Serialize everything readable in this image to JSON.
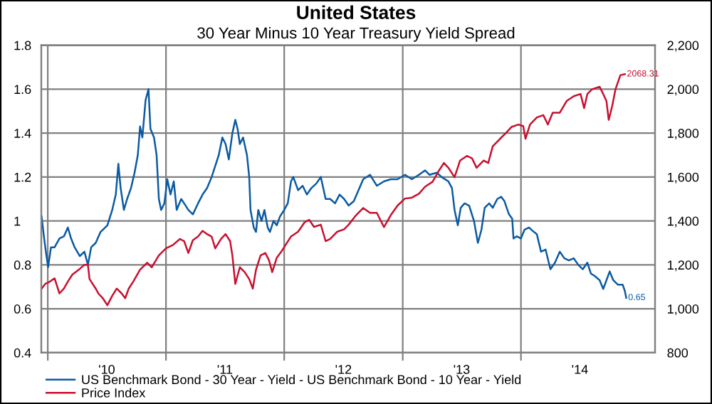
{
  "chart_data": {
    "type": "line",
    "title": "United States",
    "subtitle": "30 Year Minus 10 Year Treasury Yield Spread",
    "series": [
      {
        "name": "US Benchmark Bond - 30 Year - Yield - US Benchmark Bond - 10 Year - Yield",
        "color": "#0b5aa2",
        "axis": "y",
        "x": [
          "2009-12-13",
          "2009-12-20",
          "2009-12-27",
          "2010-01-02",
          "2010-01-11",
          "2010-01-22",
          "2010-02-06",
          "2010-02-20",
          "2010-03-04",
          "2010-03-14",
          "2010-03-25",
          "2010-04-10",
          "2010-04-24",
          "2010-05-05",
          "2010-05-15",
          "2010-05-29",
          "2010-06-13",
          "2010-07-04",
          "2010-07-19",
          "2010-07-30",
          "2010-08-07",
          "2010-08-14",
          "2010-08-24",
          "2010-09-03",
          "2010-09-15",
          "2010-09-26",
          "2010-10-06",
          "2010-10-13",
          "2010-10-20",
          "2010-10-30",
          "2010-11-08",
          "2010-11-14",
          "2010-11-25",
          "2010-12-03",
          "2010-12-10",
          "2010-12-17",
          "2010-12-27",
          "2011-01-05",
          "2011-01-15",
          "2011-01-25",
          "2011-02-03",
          "2011-02-17",
          "2011-02-26",
          "2011-03-11",
          "2011-03-25",
          "2011-04-10",
          "2011-04-24",
          "2011-05-08",
          "2011-05-22",
          "2011-06-02",
          "2011-06-13",
          "2011-06-24",
          "2011-07-04",
          "2011-07-14",
          "2011-07-25",
          "2011-08-03",
          "2011-08-10",
          "2011-08-17",
          "2011-08-27",
          "2011-09-08",
          "2011-09-15",
          "2011-09-19",
          "2011-09-29",
          "2011-10-06",
          "2011-10-13",
          "2011-10-23",
          "2011-11-01",
          "2011-11-11",
          "2011-11-18",
          "2011-11-29",
          "2011-12-09",
          "2011-12-19",
          "2012-01-01",
          "2012-01-12",
          "2012-01-22",
          "2012-01-29",
          "2012-02-13",
          "2012-02-27",
          "2012-03-11",
          "2012-03-25",
          "2012-04-09",
          "2012-04-23",
          "2012-05-08",
          "2012-05-22",
          "2012-06-06",
          "2012-06-20",
          "2012-07-04",
          "2012-07-18",
          "2012-08-03",
          "2012-09-01",
          "2012-09-22",
          "2012-10-13",
          "2012-11-04",
          "2012-11-25",
          "2012-12-16",
          "2013-01-08",
          "2013-01-29",
          "2013-02-20",
          "2013-03-11",
          "2013-03-25",
          "2013-04-16",
          "2013-05-01",
          "2013-05-22",
          "2013-06-02",
          "2013-06-10",
          "2013-06-20",
          "2013-06-29",
          "2013-07-11",
          "2013-07-25",
          "2013-08-09",
          "2013-08-21",
          "2013-09-01",
          "2013-09-11",
          "2013-09-25",
          "2013-10-06",
          "2013-10-20",
          "2013-11-01",
          "2013-11-11",
          "2013-11-25",
          "2013-12-05",
          "2013-12-09",
          "2013-12-19",
          "2014-01-01",
          "2014-01-12",
          "2014-01-26",
          "2014-02-10",
          "2014-02-19",
          "2014-03-04",
          "2014-03-18",
          "2014-04-02",
          "2014-04-16",
          "2014-05-01",
          "2014-05-15",
          "2014-05-29",
          "2014-06-13",
          "2014-06-27",
          "2014-07-11",
          "2014-07-25",
          "2014-08-05",
          "2014-08-16",
          "2014-09-01",
          "2014-09-12",
          "2014-09-22",
          "2014-10-02",
          "2014-10-13",
          "2014-10-27",
          "2014-11-11",
          "2014-11-18",
          "2014-11-22"
        ],
        "values": [
          1.02,
          0.93,
          0.85,
          0.79,
          0.88,
          0.88,
          0.92,
          0.93,
          0.97,
          0.92,
          0.88,
          0.84,
          0.86,
          0.8,
          0.88,
          0.9,
          0.95,
          0.98,
          1.05,
          1.12,
          1.26,
          1.15,
          1.05,
          1.1,
          1.15,
          1.22,
          1.3,
          1.43,
          1.38,
          1.55,
          1.6,
          1.42,
          1.38,
          1.3,
          1.1,
          1.05,
          1.08,
          1.19,
          1.12,
          1.18,
          1.05,
          1.1,
          1.08,
          1.05,
          1.03,
          1.08,
          1.12,
          1.15,
          1.2,
          1.25,
          1.3,
          1.38,
          1.35,
          1.28,
          1.4,
          1.46,
          1.42,
          1.35,
          1.38,
          1.3,
          1.2,
          1.05,
          0.97,
          0.95,
          1.05,
          1.0,
          1.05,
          0.97,
          0.95,
          1.0,
          0.98,
          1.02,
          1.05,
          1.08,
          1.18,
          1.2,
          1.14,
          1.16,
          1.12,
          1.15,
          1.17,
          1.2,
          1.1,
          1.1,
          1.08,
          1.12,
          1.1,
          1.07,
          1.09,
          1.19,
          1.21,
          1.16,
          1.18,
          1.19,
          1.19,
          1.21,
          1.19,
          1.21,
          1.23,
          1.21,
          1.22,
          1.2,
          1.18,
          1.15,
          1.05,
          0.98,
          1.06,
          1.08,
          1.07,
          1.0,
          0.9,
          0.96,
          1.06,
          1.08,
          1.06,
          1.1,
          1.11,
          1.09,
          1.03,
          1.01,
          0.92,
          0.93,
          0.92,
          0.96,
          0.97,
          0.95,
          0.94,
          0.86,
          0.87,
          0.78,
          0.81,
          0.86,
          0.83,
          0.82,
          0.83,
          0.8,
          0.78,
          0.81,
          0.76,
          0.75,
          0.73,
          0.69,
          0.73,
          0.77,
          0.73,
          0.71,
          0.71,
          0.68,
          0.65
        ],
        "value_labels": [
          null,
          null,
          null,
          null,
          null,
          null,
          null,
          null,
          null,
          null,
          null,
          null,
          null,
          null,
          null,
          null,
          null,
          null,
          null,
          null,
          null,
          null,
          null,
          null,
          null,
          null,
          null,
          null,
          null,
          null,
          null,
          null,
          null,
          null,
          null,
          null,
          null,
          null,
          null,
          null,
          null,
          null,
          null,
          null,
          null,
          null,
          null,
          null,
          null,
          null,
          null,
          null,
          null,
          null,
          null,
          null,
          null,
          null,
          null,
          null,
          null,
          null,
          null,
          null,
          null,
          null,
          null,
          null,
          null,
          null,
          null,
          null,
          null,
          null,
          null,
          null,
          null,
          null,
          null,
          null,
          null,
          null,
          null,
          null,
          null,
          null,
          null,
          null,
          null,
          null,
          null,
          null,
          null,
          null,
          null,
          null,
          null,
          null,
          null,
          null,
          null,
          null,
          null,
          null,
          null,
          null,
          null,
          null,
          null,
          null,
          null,
          null,
          null,
          null,
          null,
          null,
          null,
          null,
          null,
          null,
          null,
          null,
          null,
          null,
          null,
          null,
          null,
          null,
          null,
          null,
          null,
          null,
          null,
          null,
          null,
          null,
          null,
          null,
          null,
          null,
          null,
          null,
          null,
          null,
          null,
          null,
          null,
          null,
          "0.65"
        ]
      },
      {
        "name": "Price Index",
        "color": "#c8102e",
        "axis": "y2",
        "x": [
          "2009-12-13",
          "2009-12-24",
          "2010-01-08",
          "2010-01-22",
          "2010-02-06",
          "2010-02-20",
          "2010-03-04",
          "2010-03-18",
          "2010-04-10",
          "2010-04-24",
          "2010-05-05",
          "2010-05-10",
          "2010-05-29",
          "2010-06-06",
          "2010-06-20",
          "2010-07-04",
          "2010-07-19",
          "2010-08-02",
          "2010-08-17",
          "2010-08-28",
          "2010-09-08",
          "2010-09-22",
          "2010-10-13",
          "2010-11-04",
          "2010-11-18",
          "2010-12-10",
          "2011-01-01",
          "2011-01-22",
          "2011-02-13",
          "2011-02-26",
          "2011-03-11",
          "2011-03-25",
          "2011-04-10",
          "2011-04-24",
          "2011-05-08",
          "2011-05-22",
          "2011-06-02",
          "2011-06-20",
          "2011-07-04",
          "2011-07-18",
          "2011-07-25",
          "2011-08-03",
          "2011-08-17",
          "2011-09-01",
          "2011-09-15",
          "2011-09-26",
          "2011-10-06",
          "2011-10-20",
          "2011-11-04",
          "2011-11-15",
          "2011-11-25",
          "2011-12-09",
          "2011-12-23",
          "2012-01-08",
          "2012-01-22",
          "2012-02-13",
          "2012-03-04",
          "2012-03-18",
          "2012-04-02",
          "2012-04-23",
          "2012-05-08",
          "2012-05-22",
          "2012-06-13",
          "2012-07-04",
          "2012-07-18",
          "2012-08-10",
          "2012-09-01",
          "2012-09-22",
          "2012-10-13",
          "2012-11-04",
          "2012-11-25",
          "2012-12-16",
          "2013-01-08",
          "2013-01-29",
          "2013-02-20",
          "2013-03-11",
          "2013-04-03",
          "2013-04-24",
          "2013-05-08",
          "2013-05-22",
          "2013-06-10",
          "2013-06-27",
          "2013-07-18",
          "2013-08-03",
          "2013-08-17",
          "2013-09-08",
          "2013-09-22",
          "2013-10-06",
          "2013-10-27",
          "2013-11-18",
          "2013-12-03",
          "2013-12-24",
          "2014-01-08",
          "2014-01-15",
          "2014-01-29",
          "2014-02-19",
          "2014-03-11",
          "2014-03-25",
          "2014-04-09",
          "2014-05-01",
          "2014-05-22",
          "2014-06-13",
          "2014-07-04",
          "2014-07-15",
          "2014-07-25",
          "2014-08-09",
          "2014-09-01",
          "2014-09-12",
          "2014-09-22",
          "2014-09-29",
          "2014-10-10",
          "2014-10-20",
          "2014-11-04",
          "2014-11-18"
        ],
        "values": [
          1092,
          1113,
          1124,
          1139,
          1070,
          1092,
          1124,
          1156,
          1182,
          1200,
          1200,
          1135,
          1092,
          1070,
          1048,
          1016,
          1059,
          1092,
          1070,
          1048,
          1092,
          1124,
          1178,
          1210,
          1189,
          1243,
          1275,
          1290,
          1318,
          1308,
          1254,
          1312,
          1329,
          1355,
          1340,
          1329,
          1275,
          1318,
          1340,
          1308,
          1243,
          1113,
          1189,
          1167,
          1135,
          1092,
          1178,
          1243,
          1254,
          1221,
          1167,
          1232,
          1260,
          1297,
          1329,
          1351,
          1394,
          1405,
          1373,
          1383,
          1308,
          1318,
          1351,
          1362,
          1383,
          1426,
          1459,
          1437,
          1437,
          1372,
          1426,
          1470,
          1502,
          1506,
          1524,
          1556,
          1578,
          1632,
          1664,
          1642,
          1599,
          1675,
          1696,
          1685,
          1642,
          1675,
          1664,
          1740,
          1772,
          1804,
          1828,
          1839,
          1832,
          1774,
          1839,
          1871,
          1882,
          1839,
          1893,
          1893,
          1946,
          1968,
          1978,
          1914,
          1978,
          2000,
          2011,
          1978,
          1946,
          1860,
          1925,
          2000,
          2064,
          2068.31
        ],
        "value_labels": [
          null,
          null,
          null,
          null,
          null,
          null,
          null,
          null,
          null,
          null,
          null,
          null,
          null,
          null,
          null,
          null,
          null,
          null,
          null,
          null,
          null,
          null,
          null,
          null,
          null,
          null,
          null,
          null,
          null,
          null,
          null,
          null,
          null,
          null,
          null,
          null,
          null,
          null,
          null,
          null,
          null,
          null,
          null,
          null,
          null,
          null,
          null,
          null,
          null,
          null,
          null,
          null,
          null,
          null,
          null,
          null,
          null,
          null,
          null,
          null,
          null,
          null,
          null,
          null,
          null,
          null,
          null,
          null,
          null,
          null,
          null,
          null,
          null,
          null,
          null,
          null,
          null,
          null,
          null,
          null,
          null,
          null,
          null,
          null,
          null,
          null,
          null,
          null,
          null,
          null,
          null,
          null,
          null,
          null,
          null,
          null,
          null,
          null,
          null,
          null,
          null,
          null,
          null,
          null,
          null,
          null,
          null,
          null,
          null,
          null,
          null,
          null,
          null,
          "2068.31"
        ]
      }
    ],
    "xlim": [
      "2009-12-12",
      "2015-02-19"
    ],
    "xticks": [
      {
        "value": "2010-01-01",
        "label": null
      },
      {
        "value": "2011-01-01",
        "label": null
      },
      {
        "value": "2012-01-01",
        "label": null
      },
      {
        "value": "2013-01-01",
        "label": null
      },
      {
        "value": "2014-01-01",
        "label": null
      },
      {
        "value": "2010-07-02",
        "label": "'10"
      },
      {
        "value": "2011-07-02",
        "label": "'11"
      },
      {
        "value": "2012-07-02",
        "label": "'12"
      },
      {
        "value": "2013-07-02",
        "label": "'13"
      },
      {
        "value": "2014-07-02",
        "label": "'14"
      }
    ],
    "ylim": [
      0.4,
      1.8
    ],
    "yticks": [
      0.4,
      0.6,
      0.8,
      1,
      1.2,
      1.4,
      1.6,
      1.8
    ],
    "y2lim": [
      800,
      2200
    ],
    "y2ticks": [
      {
        "value": 800,
        "label": "800"
      },
      {
        "value": 1000,
        "label": "1,000"
      },
      {
        "value": 1200,
        "label": "1,200"
      },
      {
        "value": 1400,
        "label": "1,400"
      },
      {
        "value": 1600,
        "label": "1,600"
      },
      {
        "value": 1800,
        "label": "1,800"
      },
      {
        "value": 2000,
        "label": "2,000"
      },
      {
        "value": 2200,
        "label": "2,200"
      }
    ],
    "grid": true,
    "legend": "bottom",
    "marker": "none",
    "line_style": "solid"
  }
}
